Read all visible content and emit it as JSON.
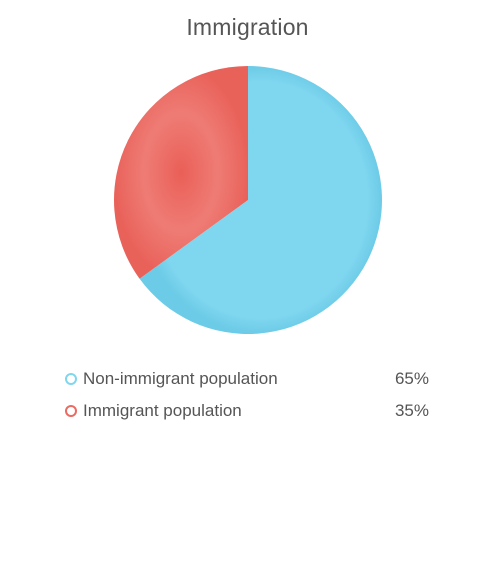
{
  "chart_data": {
    "type": "pie",
    "title": "Immigration",
    "slices": [
      {
        "label": "Non-immigrant population",
        "value": 65,
        "value_label": "65%",
        "color": "#7fd6ef"
      },
      {
        "label": "Immigrant population",
        "value": 35,
        "value_label": "35%",
        "color": "#ec6a62"
      }
    ],
    "legend_position": "bottom"
  }
}
